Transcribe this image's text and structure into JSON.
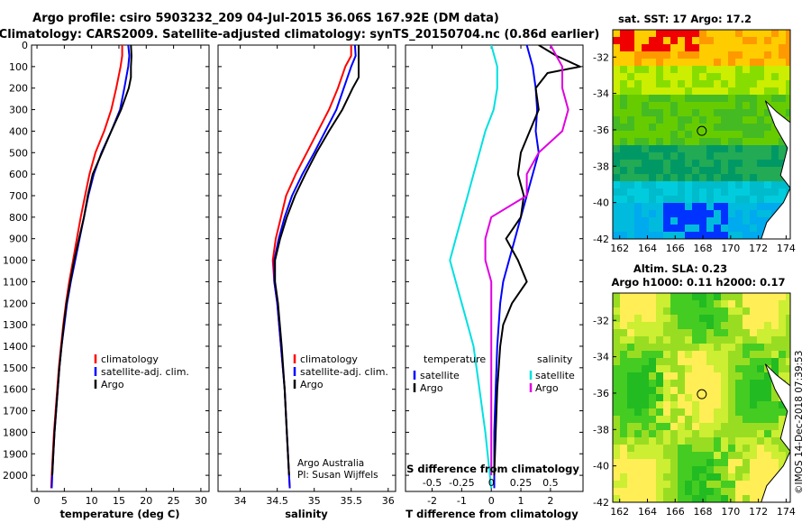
{
  "title": {
    "line1": "Argo profile: csiro 5903232_209 04-Jul-2015 36.06S 167.92E (DM data)",
    "line2": "Climatology: CARS2009. Satellite-adjusted climatology: synTS_20150704.nc (0.86d earlier)"
  },
  "colors": {
    "climatology": "#ff0000",
    "satellite": "#0000ff",
    "argo": "#000000",
    "s_satellite": "#00e0e0",
    "s_argo": "#e000e0"
  },
  "chart_data": [
    {
      "type": "line",
      "xlabel": "temperature (deg C)",
      "ylabel": "",
      "xlim": [
        -1,
        31.5
      ],
      "ylim": [
        2075,
        0
      ],
      "x_ticks": [
        0,
        5,
        10,
        15,
        20,
        25,
        30
      ],
      "y_ticks": [
        0,
        100,
        200,
        300,
        400,
        500,
        600,
        700,
        800,
        900,
        1000,
        1100,
        1200,
        1300,
        1400,
        1500,
        1600,
        1700,
        1800,
        1900,
        2000
      ],
      "legend": [
        "climatology",
        "satellite-adj. clim.",
        "Argo"
      ],
      "legend_position": "lower-right",
      "series": [
        {
          "name": "climatology",
          "color": "#ff0000",
          "points": [
            [
              15.6,
              0
            ],
            [
              15.6,
              50
            ],
            [
              15.3,
              100
            ],
            [
              14.5,
              200
            ],
            [
              13.6,
              300
            ],
            [
              12.3,
              400
            ],
            [
              10.7,
              500
            ],
            [
              9.6,
              600
            ],
            [
              8.8,
              700
            ],
            [
              8.0,
              800
            ],
            [
              7.3,
              900
            ],
            [
              6.6,
              1000
            ],
            [
              5.9,
              1100
            ],
            [
              5.3,
              1200
            ],
            [
              4.8,
              1300
            ],
            [
              4.4,
              1400
            ],
            [
              4.0,
              1500
            ],
            [
              3.7,
              1600
            ],
            [
              3.4,
              1700
            ],
            [
              3.1,
              1800
            ],
            [
              2.9,
              1900
            ],
            [
              2.7,
              2000
            ],
            [
              2.6,
              2060
            ]
          ]
        },
        {
          "name": "satellite-adj. clim.",
          "color": "#0000ff",
          "points": [
            [
              16.7,
              0
            ],
            [
              16.9,
              50
            ],
            [
              16.7,
              100
            ],
            [
              16.0,
              200
            ],
            [
              15.2,
              300
            ],
            [
              13.6,
              400
            ],
            [
              11.8,
              500
            ],
            [
              10.4,
              600
            ],
            [
              9.4,
              700
            ],
            [
              8.6,
              800
            ],
            [
              7.8,
              900
            ],
            [
              7.0,
              1000
            ],
            [
              6.2,
              1100
            ],
            [
              5.5,
              1200
            ],
            [
              5.0,
              1300
            ],
            [
              4.5,
              1400
            ],
            [
              4.1,
              1500
            ],
            [
              3.8,
              1600
            ],
            [
              3.5,
              1700
            ],
            [
              3.2,
              1800
            ],
            [
              3.0,
              1900
            ],
            [
              2.8,
              2000
            ],
            [
              2.7,
              2060
            ]
          ]
        },
        {
          "name": "Argo",
          "color": "#000000",
          "points": [
            [
              17.2,
              0
            ],
            [
              17.3,
              50
            ],
            [
              17.2,
              100
            ],
            [
              17.2,
              150
            ],
            [
              16.8,
              200
            ],
            [
              15.4,
              300
            ],
            [
              13.6,
              400
            ],
            [
              11.9,
              500
            ],
            [
              10.2,
              600
            ],
            [
              9.3,
              700
            ],
            [
              8.6,
              800
            ],
            [
              7.7,
              900
            ],
            [
              6.8,
              1000
            ],
            [
              6.1,
              1100
            ],
            [
              5.4,
              1200
            ],
            [
              4.9,
              1300
            ],
            [
              4.5,
              1400
            ],
            [
              4.1,
              1500
            ],
            [
              3.8,
              1600
            ],
            [
              3.5,
              1700
            ],
            [
              3.2,
              1800
            ],
            [
              3.0,
              1900
            ],
            [
              2.8,
              2000
            ]
          ]
        }
      ]
    },
    {
      "type": "line",
      "xlabel": "salinity",
      "xlim": [
        33.7,
        36.1
      ],
      "ylim": [
        2075,
        0
      ],
      "x_ticks": [
        34,
        34.5,
        35,
        35.5,
        36
      ],
      "legend": [
        "climatology",
        "satellite-adj. clim.",
        "Argo"
      ],
      "legend_position": "lower-right",
      "series": [
        {
          "name": "climatology",
          "color": "#ff0000",
          "points": [
            [
              35.5,
              0
            ],
            [
              35.5,
              50
            ],
            [
              35.42,
              100
            ],
            [
              35.32,
              200
            ],
            [
              35.2,
              300
            ],
            [
              35.05,
              400
            ],
            [
              34.9,
              500
            ],
            [
              34.75,
              600
            ],
            [
              34.62,
              700
            ],
            [
              34.55,
              800
            ],
            [
              34.48,
              900
            ],
            [
              34.44,
              1000
            ],
            [
              34.46,
              1100
            ],
            [
              34.5,
              1200
            ],
            [
              34.55,
              1400
            ],
            [
              34.6,
              1600
            ],
            [
              34.63,
              1800
            ],
            [
              34.66,
              2000
            ],
            [
              34.67,
              2060
            ]
          ]
        },
        {
          "name": "satellite-adj. clim.",
          "color": "#0000ff",
          "points": [
            [
              35.55,
              0
            ],
            [
              35.56,
              50
            ],
            [
              35.5,
              100
            ],
            [
              35.4,
              200
            ],
            [
              35.3,
              300
            ],
            [
              35.15,
              400
            ],
            [
              35.0,
              500
            ],
            [
              34.84,
              600
            ],
            [
              34.7,
              700
            ],
            [
              34.6,
              800
            ],
            [
              34.52,
              900
            ],
            [
              34.46,
              1000
            ],
            [
              34.46,
              1100
            ],
            [
              34.5,
              1200
            ],
            [
              34.55,
              1400
            ],
            [
              34.6,
              1600
            ],
            [
              34.63,
              1800
            ],
            [
              34.66,
              2000
            ],
            [
              34.67,
              2060
            ]
          ]
        },
        {
          "name": "Argo",
          "color": "#000000",
          "points": [
            [
              35.6,
              0
            ],
            [
              35.6,
              50
            ],
            [
              35.6,
              100
            ],
            [
              35.6,
              150
            ],
            [
              35.52,
              200
            ],
            [
              35.38,
              300
            ],
            [
              35.2,
              400
            ],
            [
              35.03,
              500
            ],
            [
              34.88,
              600
            ],
            [
              34.74,
              700
            ],
            [
              34.63,
              800
            ],
            [
              34.54,
              900
            ],
            [
              34.47,
              1000
            ],
            [
              34.47,
              1100
            ],
            [
              34.51,
              1200
            ],
            [
              34.56,
              1400
            ],
            [
              34.6,
              1600
            ],
            [
              34.63,
              1800
            ],
            [
              34.66,
              2000
            ]
          ]
        }
      ]
    },
    {
      "type": "line",
      "xlabel": "T difference from climatology",
      "xlim": [
        -2.9,
        3.1
      ],
      "ylim": [
        2075,
        0
      ],
      "x_ticks": [
        -2,
        -1,
        0,
        1,
        2
      ],
      "secondary_xlabel": "S difference from climatology",
      "secondary_x_ticks": [
        "-0.5",
        "-0.25",
        "0",
        "0.25",
        "0.5"
      ],
      "legend_temperature": {
        "title": "temperature",
        "items": [
          "satellite",
          "Argo"
        ]
      },
      "legend_salinity": {
        "title": "salinity",
        "items": [
          "satellite",
          "Argo"
        ]
      },
      "series": [
        {
          "name": "satellite",
          "group": "temperature",
          "color": "#0000ff",
          "points": [
            [
              1.2,
              0
            ],
            [
              1.4,
              100
            ],
            [
              1.5,
              200
            ],
            [
              1.55,
              300
            ],
            [
              1.5,
              400
            ],
            [
              1.6,
              500
            ],
            [
              1.4,
              600
            ],
            [
              1.2,
              700
            ],
            [
              1.0,
              800
            ],
            [
              0.8,
              900
            ],
            [
              0.6,
              1000
            ],
            [
              0.4,
              1100
            ],
            [
              0.3,
              1200
            ],
            [
              0.2,
              1400
            ],
            [
              0.15,
              1600
            ],
            [
              0.1,
              1800
            ],
            [
              0.1,
              2060
            ]
          ]
        },
        {
          "name": "Argo",
          "group": "temperature",
          "color": "#000000",
          "points": [
            [
              1.6,
              0
            ],
            [
              2.2,
              50
            ],
            [
              3.0,
              100
            ],
            [
              1.9,
              130
            ],
            [
              1.5,
              200
            ],
            [
              1.6,
              300
            ],
            [
              1.3,
              400
            ],
            [
              1.0,
              500
            ],
            [
              0.9,
              600
            ],
            [
              1.1,
              700
            ],
            [
              1.0,
              800
            ],
            [
              0.5,
              900
            ],
            [
              0.9,
              1000
            ],
            [
              1.2,
              1100
            ],
            [
              0.7,
              1200
            ],
            [
              0.4,
              1300
            ],
            [
              0.3,
              1400
            ],
            [
              0.2,
              1600
            ],
            [
              0.15,
              1800
            ],
            [
              0.1,
              2000
            ]
          ]
        },
        {
          "name": "satellite",
          "group": "salinity",
          "color": "#00e0e0",
          "points": [
            [
              0.0,
              0
            ],
            [
              0.05,
              100
            ],
            [
              0.05,
              200
            ],
            [
              0.02,
              300
            ],
            [
              -0.05,
              400
            ],
            [
              -0.1,
              500
            ],
            [
              -0.15,
              600
            ],
            [
              -0.2,
              700
            ],
            [
              -0.25,
              800
            ],
            [
              -0.3,
              900
            ],
            [
              -0.35,
              1000
            ],
            [
              -0.3,
              1100
            ],
            [
              -0.25,
              1200
            ],
            [
              -0.2,
              1300
            ],
            [
              -0.15,
              1400
            ],
            [
              -0.1,
              1600
            ],
            [
              -0.05,
              1800
            ],
            [
              0.0,
              2060
            ]
          ]
        },
        {
          "name": "Argo",
          "group": "salinity",
          "color": "#e000e0",
          "points": [
            [
              0.5,
              0
            ],
            [
              0.6,
              100
            ],
            [
              0.6,
              200
            ],
            [
              0.65,
              300
            ],
            [
              0.6,
              400
            ],
            [
              0.4,
              500
            ],
            [
              0.3,
              600
            ],
            [
              0.3,
              700
            ],
            [
              0.0,
              800
            ],
            [
              -0.05,
              900
            ],
            [
              -0.05,
              1000
            ],
            [
              0.0,
              1100
            ],
            [
              0.0,
              1200
            ],
            [
              0.0,
              1400
            ],
            [
              0.0,
              1600
            ],
            [
              0.0,
              1800
            ],
            [
              0.0,
              2000
            ]
          ]
        }
      ]
    },
    {
      "type": "heatmap",
      "title": "sat. SST: 17 Argo: 17.2",
      "xlim": [
        161.5,
        174.3
      ],
      "ylim": [
        -42,
        -30.5
      ],
      "x_ticks": [
        162,
        164,
        166,
        168,
        170,
        172,
        174
      ],
      "y_ticks": [
        -32,
        -34,
        -36,
        -38,
        -40,
        -42
      ],
      "marker": {
        "lon": 167.92,
        "lat": -36.06
      }
    },
    {
      "type": "heatmap",
      "title": "Altim. SLA: 0.23",
      "subtitle": "Argo h1000: 0.11 h2000: 0.17",
      "xlim": [
        161.5,
        174.3
      ],
      "ylim": [
        -42,
        -30.5
      ],
      "x_ticks": [
        162,
        164,
        166,
        168,
        170,
        172,
        174
      ],
      "y_ticks": [
        -32,
        -34,
        -36,
        -38,
        -40,
        -42
      ],
      "marker": {
        "lon": 167.92,
        "lat": -36.06
      }
    }
  ],
  "credit": {
    "line1": "Argo Australia",
    "line2": "PI: Susan Wijffels"
  },
  "stamp": "©IMOS 14-Dec-2018 07:39:53"
}
